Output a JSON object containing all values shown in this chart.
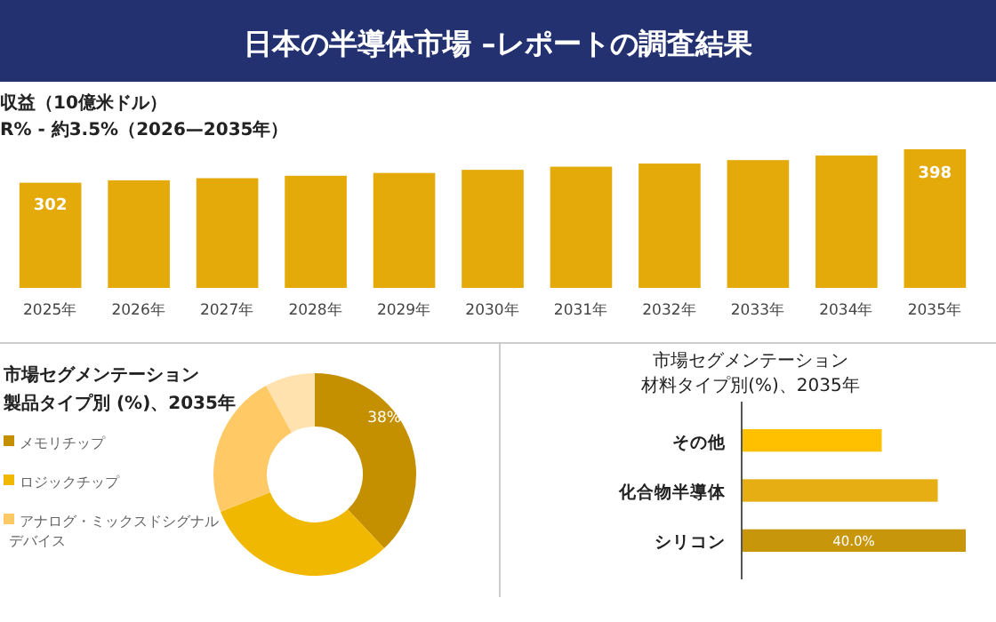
{
  "chart_data": [
    {
      "type": "bar",
      "title": "日本の半導体市場 –レポートの調査結果",
      "subtitle": "収益（10億米ドル）",
      "annotations": [
        "R% - 約3.5%（2026—2035年）"
      ],
      "categories": [
        "2025年",
        "2026年",
        "2027年",
        "2028年",
        "2029年",
        "2030年",
        "2031年",
        "2032年",
        "2033年",
        "2034年",
        "2035年"
      ],
      "values": [
        302,
        309,
        315,
        322,
        330,
        339,
        348,
        357,
        367,
        380,
        398
      ],
      "value_labels": [
        "302",
        null,
        null,
        null,
        null,
        null,
        null,
        null,
        null,
        null,
        "398"
      ],
      "color": "#e3aa0a",
      "tick_labels": "x"
    },
    {
      "type": "donut",
      "title": "市場セグメンテーション",
      "subtitle": "製品タイプ別 (%)、2035年",
      "categories": [
        "メモリチップ",
        "ロジックチップ",
        "アナログ・ミックスドシグナルデバイス",
        null
      ],
      "values": [
        38,
        31,
        23,
        8
      ],
      "colors": [
        "#c49000",
        "#f0b800",
        "#ffc966",
        "#ffe2ae"
      ],
      "value_labels": [
        "38%",
        null,
        null,
        null
      ],
      "legend": "left"
    },
    {
      "type": "bar",
      "orientation": "horizontal",
      "title": "市場セグメンテーション",
      "subtitle": "材料タイプ別(%)、2035年",
      "categories": [
        "その他",
        "化合物半導体",
        "シリコン"
      ],
      "values": [
        25,
        35,
        40
      ],
      "colors": [
        "#ffc000",
        "#e6ae12",
        "#c8960a"
      ],
      "value_labels": [
        null,
        null,
        "40.0%"
      ],
      "xlim": [
        0,
        40
      ],
      "tick_labels": "y"
    }
  ]
}
